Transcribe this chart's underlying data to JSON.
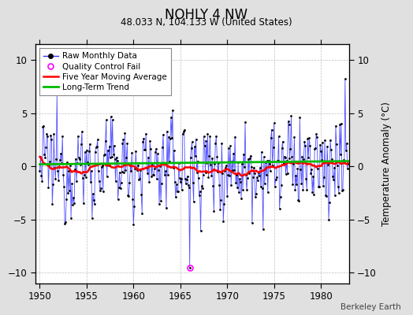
{
  "title": "NOHLY 4 NW",
  "subtitle": "48.033 N, 104.133 W (United States)",
  "ylabel": "Temperature Anomaly (°C)",
  "credit": "Berkeley Earth",
  "xlim": [
    1949.5,
    1983.0
  ],
  "ylim": [
    -11,
    11.5
  ],
  "yticks": [
    -10,
    -5,
    0,
    5,
    10
  ],
  "xticks": [
    1950,
    1955,
    1960,
    1965,
    1970,
    1975,
    1980
  ],
  "bg_color": "#e0e0e0",
  "plot_bg_color": "#ffffff",
  "raw_color": "#3333ff",
  "marker_color": "#000000",
  "ma_color": "#ff0000",
  "trend_color": "#00bb00",
  "qc_color": "#ff00ff",
  "start_year": 1950,
  "end_year": 1983,
  "seed": 12345,
  "qc_fail_year": 1966.0,
  "qc_fail_value": -9.5
}
